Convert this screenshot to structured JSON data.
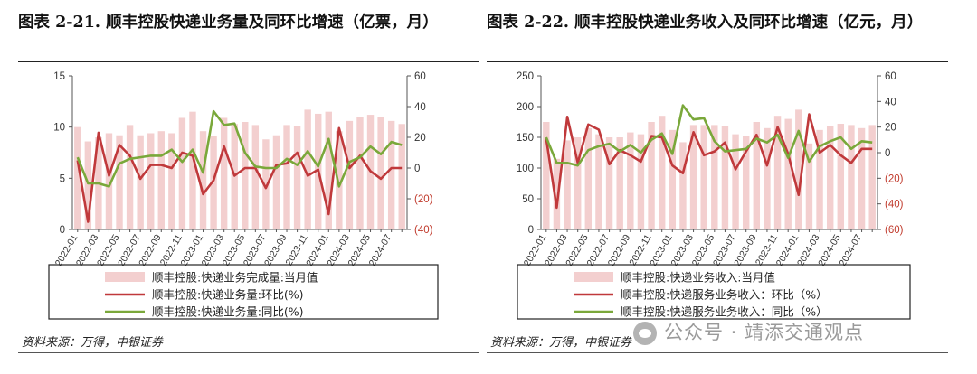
{
  "watermark": {
    "text": "公众号 · 靖添交通观点",
    "icon": "wechat-icon"
  },
  "charts": [
    {
      "title": "图表 2-21. 顺丰控股快递业务量及同环比增速（亿票，月）",
      "source": "资料来源：万得，中银证券",
      "chart_data": {
        "type": "bar+line",
        "categories": [
          "2022-01",
          "2022-02",
          "2022-03",
          "2022-04",
          "2022-05",
          "2022-06",
          "2022-07",
          "2022-08",
          "2022-09",
          "2022-10",
          "2022-11",
          "2022-12",
          "2023-01",
          "2023-02",
          "2023-03",
          "2023-04",
          "2023-05",
          "2023-06",
          "2023-07",
          "2023-08",
          "2023-09",
          "2023-10",
          "2023-11",
          "2023-12",
          "2024-01",
          "2024-02",
          "2024-03",
          "2024-04",
          "2024-05",
          "2024-06",
          "2024-07",
          "2024-08"
        ],
        "x_tick_labels": [
          "2022-01",
          "2022-03",
          "2022-05",
          "2022-07",
          "2022-09",
          "2022-11",
          "2023-01",
          "2023-03",
          "2023-05",
          "2023-07",
          "2023-09",
          "2023-11",
          "2024-01",
          "2024-03",
          "2024-05",
          "2024-07"
        ],
        "left_axis": {
          "ylim": [
            0,
            15
          ],
          "ticks": [
            "0",
            "5",
            "10",
            "15"
          ]
        },
        "right_axis": {
          "ylim": [
            -40,
            60
          ],
          "ticks": [
            "(40)",
            "(20)",
            "0",
            "20",
            "40",
            "60"
          ],
          "negative_color": "#c0392b"
        },
        "series": [
          {
            "name": "顺丰控股:快递业务完成量:当月值",
            "axis": "left",
            "kind": "bar",
            "color": "#f3cfcf",
            "values": [
              10.0,
              8.6,
              9.0,
              9.4,
              9.2,
              10.2,
              9.2,
              9.4,
              9.6,
              9.4,
              10.9,
              11.5,
              9.6,
              9.1,
              10.9,
              10.3,
              10.5,
              10.2,
              8.8,
              9.2,
              10.2,
              10.1,
              11.7,
              11.3,
              11.5,
              9.6,
              10.6,
              11.0,
              11.2,
              11.0,
              10.6,
              10.3
            ]
          },
          {
            "name": "顺丰控股:快递业务量:环比(%)",
            "axis": "right",
            "kind": "line",
            "color": "#c0393b",
            "values": [
              5,
              -35,
              23,
              -5,
              15,
              8,
              -7,
              2,
              2,
              0,
              10,
              8,
              -17,
              -8,
              14,
              -5,
              0,
              0,
              -13,
              2,
              3,
              10,
              -5,
              -1,
              -30,
              26,
              0,
              8,
              -2,
              -7,
              0,
              0
            ]
          },
          {
            "name": "顺丰控股:快递业务量:同比(%)",
            "axis": "right",
            "kind": "line",
            "color": "#7aa83a",
            "values": [
              7,
              -10,
              -10,
              -12,
              3,
              6,
              7,
              8,
              8,
              12,
              4,
              12,
              -3,
              37,
              28,
              29,
              10,
              1,
              0,
              0,
              6,
              2,
              11,
              1,
              19,
              -12,
              4,
              7,
              14,
              9,
              17,
              15
            ]
          }
        ]
      }
    },
    {
      "title": "图表 2-22. 顺丰控股快递业务收入及同环比增速（亿元，月）",
      "source": "资料来源：万得，中银证券",
      "chart_data": {
        "type": "bar+line",
        "categories": [
          "2022-01",
          "2022-02",
          "2022-03",
          "2022-04",
          "2022-05",
          "2022-06",
          "2022-07",
          "2022-08",
          "2022-09",
          "2022-10",
          "2022-11",
          "2022-12",
          "2023-01",
          "2023-02",
          "2023-03",
          "2023-04",
          "2023-05",
          "2023-06",
          "2023-07",
          "2023-08",
          "2023-09",
          "2023-10",
          "2023-11",
          "2023-12",
          "2024-01",
          "2024-02",
          "2024-03",
          "2024-04",
          "2024-05",
          "2024-06",
          "2024-07",
          "2024-08"
        ],
        "x_tick_labels": [
          "2022-01",
          "2022-03",
          "2022-05",
          "2022-07",
          "2022-09",
          "2022-11",
          "2023-01",
          "2023-03",
          "2023-05",
          "2023-07",
          "2023-09",
          "2023-11",
          "2024-01",
          "2024-03",
          "2024-05",
          "2024-07"
        ],
        "left_axis": {
          "ylim": [
            0,
            250
          ],
          "ticks": [
            "0",
            "50",
            "100",
            "150",
            "200",
            "250"
          ]
        },
        "right_axis": {
          "ylim": [
            -60,
            60
          ],
          "ticks": [
            "(60)",
            "(40)",
            "(20)",
            "0",
            "20",
            "40",
            "60"
          ],
          "negative_color": "#c0392b"
        },
        "series": [
          {
            "name": "顺丰控股:快递业务收入:当月值",
            "axis": "left",
            "kind": "bar",
            "color": "#f3cfcf",
            "values": [
              175,
              115,
              145,
              150,
              165,
              155,
              150,
              150,
              158,
              155,
              175,
              185,
              162,
              142,
              170,
              170,
              170,
              168,
              155,
              152,
              175,
              165,
              185,
              180,
              195,
              140,
              162,
              168,
              172,
              170,
              165,
              170
            ]
          },
          {
            "name": "顺丰控股:快递服务业务收入：环比（%）",
            "axis": "right",
            "kind": "line",
            "color": "#c0393b",
            "values": [
              11,
              -43,
              28,
              -8,
              22,
              18,
              -9,
              2,
              -2,
              -7,
              13,
              12,
              -10,
              -16,
              16,
              -2,
              1,
              8,
              -13,
              1,
              14,
              -10,
              20,
              -1,
              -33,
              30,
              0,
              6,
              -2,
              -8,
              3,
              3
            ]
          },
          {
            "name": "顺丰控股:快递服务业务收入：同比（%）",
            "axis": "right",
            "kind": "line",
            "color": "#7aa83a",
            "values": [
              12,
              -8,
              -8,
              -10,
              2,
              5,
              7,
              1,
              6,
              0,
              10,
              15,
              -1,
              37,
              26,
              27,
              9,
              1,
              2,
              3,
              11,
              8,
              14,
              -4,
              17,
              -7,
              5,
              9,
              12,
              3,
              9,
              8
            ]
          }
        ]
      }
    }
  ]
}
